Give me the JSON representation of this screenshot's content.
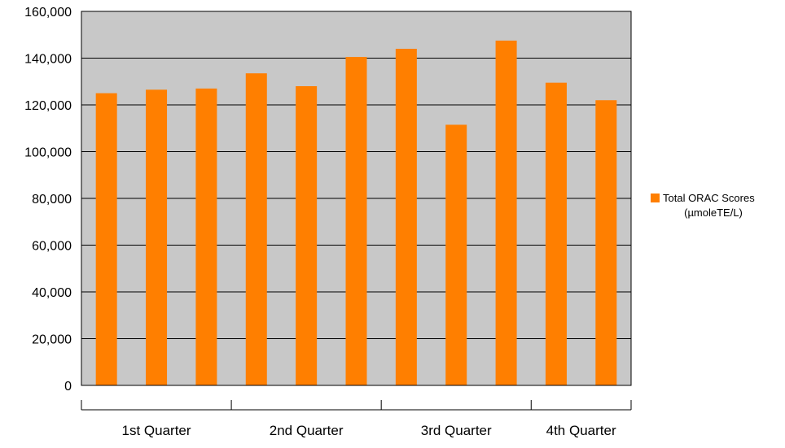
{
  "chart_data": {
    "type": "bar",
    "groups": [
      "1st Quarter",
      "2nd Quarter",
      "3rd Quarter",
      "4th Quarter"
    ],
    "group_sizes": [
      3,
      3,
      3,
      2
    ],
    "values": [
      125000,
      126500,
      127000,
      133500,
      128000,
      140500,
      144000,
      111500,
      147500,
      129500,
      122000
    ],
    "series": [
      {
        "name_lines": [
          "Total ORAC Scores",
          "(µmoleTE/L)"
        ]
      }
    ],
    "ylim": [
      0,
      160000
    ],
    "yticks": [
      0,
      20000,
      40000,
      60000,
      80000,
      100000,
      120000,
      140000,
      160000
    ],
    "ytick_labels": [
      "0",
      "20,000",
      "40,000",
      "60,000",
      "80,000",
      "100,000",
      "120,000",
      "140,000",
      "160,000"
    ],
    "grid": true,
    "legend_position": "right",
    "colors": {
      "bar": "#ff7f00",
      "plot_background": "#c8c8c8",
      "gridline": "#000000"
    }
  }
}
